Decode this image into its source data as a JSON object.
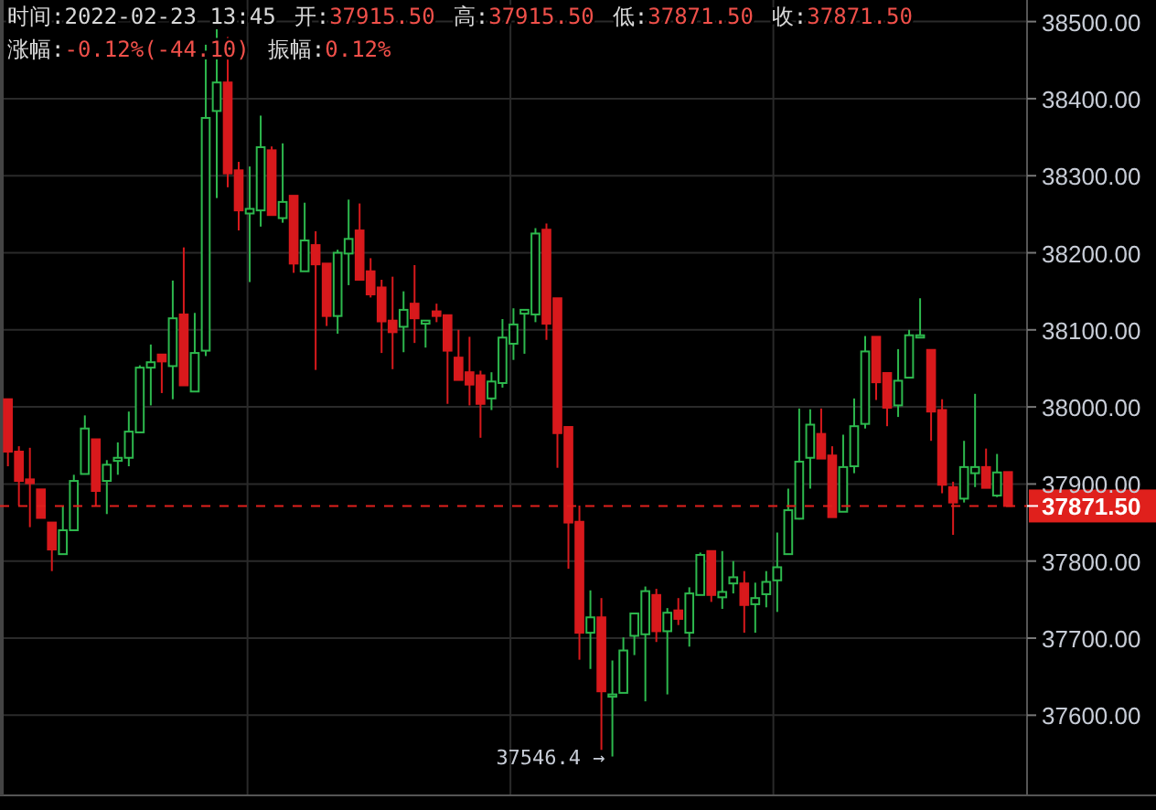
{
  "chart_data": {
    "type": "candlestick",
    "categories": [
      null,
      null,
      null,
      null,
      null,
      null,
      null,
      null,
      null,
      null,
      null,
      null,
      null,
      null,
      null,
      null,
      null,
      null,
      null,
      null,
      null,
      null,
      null,
      null,
      null,
      null,
      null,
      null,
      null,
      null,
      null,
      null,
      null,
      null,
      null,
      null,
      null,
      null,
      null,
      null,
      null,
      null,
      null,
      null,
      null,
      null,
      null,
      null,
      null,
      null,
      null,
      null,
      null,
      null,
      null,
      null,
      null,
      null,
      null,
      null,
      null,
      null,
      null,
      null,
      null,
      null,
      null,
      null,
      null,
      null,
      null,
      null,
      null,
      null,
      null,
      null,
      null,
      null,
      null,
      null,
      null,
      null,
      null,
      null,
      null,
      null,
      null,
      null,
      null,
      null,
      null,
      null
    ],
    "ohlc": [
      [
        38010,
        38010,
        37923,
        37942
      ],
      [
        37942,
        37949,
        37872,
        37904
      ],
      [
        37906,
        37947,
        37844,
        37901
      ],
      [
        37893,
        37893,
        37856,
        37856
      ],
      [
        37850,
        37850,
        37787,
        37815
      ],
      [
        37809,
        37872,
        37809,
        37840
      ],
      [
        37840,
        37912,
        37840,
        37904
      ],
      [
        37913,
        37989,
        37913,
        37972
      ],
      [
        37958,
        37958,
        37872,
        37891
      ],
      [
        37904,
        37931,
        37861,
        37925
      ],
      [
        37930,
        37954,
        37912,
        37934
      ],
      [
        37934,
        37994,
        37923,
        37968
      ],
      [
        37967,
        38054,
        37967,
        38051
      ],
      [
        38051,
        38081,
        38002,
        38058
      ],
      [
        38068,
        38068,
        38018,
        38059
      ],
      [
        38053,
        38164,
        38010,
        38115
      ],
      [
        38120,
        38207,
        38028,
        38028
      ],
      [
        38020,
        38122,
        38020,
        38070
      ],
      [
        38073,
        38470,
        38066,
        38375
      ],
      [
        38384,
        38490,
        38271,
        38421
      ],
      [
        38421,
        38480,
        38285,
        38303
      ],
      [
        38307,
        38318,
        38229,
        38255
      ],
      [
        38251,
        38312,
        38162,
        38257
      ],
      [
        38255,
        38378,
        38234,
        38337
      ],
      [
        38333,
        38338,
        38249,
        38249
      ],
      [
        38245,
        38342,
        38239,
        38266
      ],
      [
        38274,
        38274,
        38174,
        38186
      ],
      [
        38176,
        38265,
        38176,
        38216
      ],
      [
        38210,
        38228,
        38048,
        38185
      ],
      [
        38186,
        38186,
        38105,
        38118
      ],
      [
        38118,
        38204,
        38095,
        38200
      ],
      [
        38199,
        38269,
        38158,
        38218
      ],
      [
        38229,
        38264,
        38165,
        38165
      ],
      [
        38176,
        38193,
        38142,
        38146
      ],
      [
        38155,
        38165,
        38070,
        38111
      ],
      [
        38112,
        38169,
        38049,
        38097
      ],
      [
        38104,
        38150,
        38071,
        38126
      ],
      [
        38134,
        38184,
        38083,
        38115
      ],
      [
        38108,
        38112,
        38077,
        38112
      ],
      [
        38124,
        38134,
        38110,
        38118
      ],
      [
        38119,
        38119,
        38004,
        38073
      ],
      [
        38064,
        38100,
        38035,
        38035
      ],
      [
        38045,
        38091,
        38002,
        38029
      ],
      [
        38041,
        38047,
        37960,
        38004
      ],
      [
        38011,
        38045,
        37996,
        38033
      ],
      [
        38031,
        38114,
        38025,
        38090
      ],
      [
        38082,
        38128,
        38061,
        38107
      ],
      [
        38121,
        38126,
        38069,
        38126
      ],
      [
        38120,
        38232,
        38110,
        38225
      ],
      [
        38230,
        38238,
        38087,
        38108
      ],
      [
        38141,
        38141,
        37921,
        37966
      ],
      [
        37974,
        37974,
        37790,
        37850
      ],
      [
        37851,
        37872,
        37672,
        37707
      ],
      [
        37707,
        37762,
        37660,
        37727
      ],
      [
        37727,
        37752,
        37555,
        37631
      ],
      [
        37624,
        37671,
        37546.4,
        37627
      ],
      [
        37629,
        37701,
        37629,
        37684
      ],
      [
        37703,
        37732,
        37678,
        37732
      ],
      [
        37705,
        37767,
        37618,
        37761
      ],
      [
        37756,
        37764,
        37695,
        37709
      ],
      [
        37709,
        37739,
        37627,
        37733
      ],
      [
        37736,
        37752,
        37717,
        37725
      ],
      [
        37707,
        37766,
        37689,
        37758
      ],
      [
        37756,
        37811,
        37756,
        37808
      ],
      [
        37813,
        37813,
        37747,
        37756
      ],
      [
        37753,
        37813,
        37738,
        37760
      ],
      [
        37771,
        37800,
        37758,
        37779
      ],
      [
        37771,
        37787,
        37707,
        37743
      ],
      [
        37744,
        37772,
        37707,
        37752
      ],
      [
        37757,
        37787,
        37740,
        37773
      ],
      [
        37775,
        37837,
        37734,
        37792
      ],
      [
        37809,
        37894,
        37809,
        37866
      ],
      [
        37855,
        37998,
        37854,
        37929
      ],
      [
        37934,
        37997,
        37894,
        37977
      ],
      [
        37965,
        37998,
        37933,
        37933
      ],
      [
        37937,
        37949,
        37857,
        37857
      ],
      [
        37864,
        37964,
        37864,
        37922
      ],
      [
        37923,
        38011,
        37914,
        37975
      ],
      [
        37978,
        38092,
        37972,
        38072
      ],
      [
        38091,
        38091,
        38009,
        38032
      ],
      [
        38044,
        38044,
        37975,
        37999
      ],
      [
        38002,
        38075,
        37987,
        38034
      ],
      [
        38038,
        38100,
        38038,
        38093
      ],
      [
        38090,
        38141,
        38090,
        38093
      ],
      [
        38074,
        38074,
        37956,
        37994
      ],
      [
        37996,
        38010,
        37888,
        37899
      ],
      [
        37896,
        37903,
        37834,
        37876
      ],
      [
        37881,
        37956,
        37876,
        37922
      ],
      [
        37914,
        38017,
        37896,
        37922
      ],
      [
        37922,
        37946,
        37895,
        37895
      ],
      [
        37885,
        37939,
        37883,
        37915
      ],
      [
        37915.5,
        37915.5,
        37871.5,
        37871.5
      ]
    ],
    "ylim": [
      37496,
      38528
    ],
    "yticks": [
      {
        "value": 37600,
        "label": "37600.00"
      },
      {
        "value": 37700,
        "label": "37700.00"
      },
      {
        "value": 37800,
        "label": "37800.00"
      },
      {
        "value": 37900,
        "label": "37900.00"
      },
      {
        "value": 38000,
        "label": "38000.00"
      },
      {
        "value": 38100,
        "label": "38100.00"
      },
      {
        "value": 38200,
        "label": "38200.00"
      },
      {
        "value": 38300,
        "label": "38300.00"
      },
      {
        "value": 38400,
        "label": "38400.00"
      },
      {
        "value": 38500,
        "label": "38500.00"
      }
    ],
    "grid": true,
    "ref_lines": [
      {
        "axis": "y",
        "value": 37871.5,
        "label": "37871.50",
        "color": "#e0201c",
        "line_style": "dashed"
      }
    ],
    "annotations": [
      "时间:2022-02-23 13:45",
      "开:37915.50",
      "高:37915.50",
      "低:37871.50",
      "收:37871.50",
      "涨幅:-0.12%(-44.10)",
      "振幅:0.12%",
      "37546.4 →"
    ]
  }
}
